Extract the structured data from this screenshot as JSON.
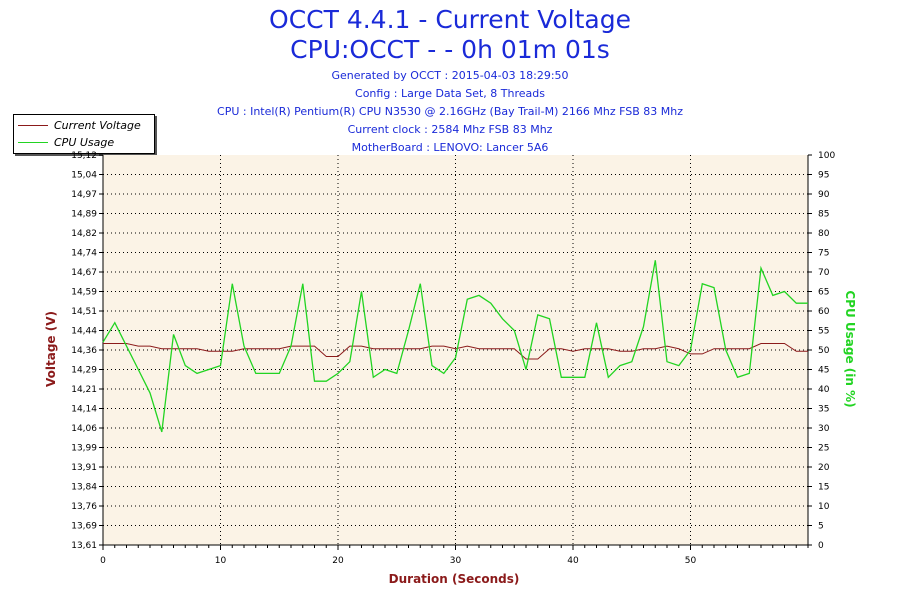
{
  "titles": {
    "line1": "OCCT 4.4.1 - Current Voltage",
    "line2": "CPU:OCCT -  - 0h 01m 01s"
  },
  "info_lines": [
    "Generated by OCCT : 2015-04-03 18:29:50",
    "Config : Large Data Set, 8 Threads",
    "CPU : Intel(R) Pentium(R) CPU N3530 @ 2.16GHz (Bay Trail-M) 2166 Mhz FSB 83 Mhz",
    "Current clock : 2584 Mhz FSB 83 Mhz",
    "MotherBoard : LENOVO: Lancer 5A6"
  ],
  "colors": {
    "title": "#1a2ad8",
    "voltage": "#8b1a1a",
    "cpu": "#22d422",
    "plot_bg": "#fbf3e6",
    "grid": "#000000"
  },
  "chart_data": {
    "type": "line",
    "xlabel": "Duration (Seconds)",
    "ylabel_left": "Voltage (V)",
    "ylabel_right": "CPU Usage (in %)",
    "xlim": [
      0,
      60
    ],
    "ylim_left": [
      13.61,
      15.12
    ],
    "ylim_right": [
      0,
      100
    ],
    "x_ticks": [
      0,
      10,
      20,
      30,
      40,
      50
    ],
    "y_left_ticks": [
      "13,61",
      "13,69",
      "13,76",
      "13,84",
      "13,91",
      "13,99",
      "14,06",
      "14,14",
      "14,21",
      "14,29",
      "14,36",
      "14,44",
      "14,51",
      "14,59",
      "14,67",
      "14,74",
      "14,82",
      "14,89",
      "14,97",
      "15,04",
      "15,12"
    ],
    "y_right_ticks": [
      0,
      5,
      10,
      15,
      20,
      25,
      30,
      35,
      40,
      45,
      50,
      55,
      60,
      65,
      70,
      75,
      80,
      85,
      90,
      95,
      100
    ],
    "grid": true,
    "legend": {
      "placement": "top-left",
      "entries": [
        "Current Voltage",
        "CPU Usage"
      ]
    },
    "series": [
      {
        "name": "Current Voltage",
        "axis": "left",
        "x": [
          0,
          1,
          2,
          3,
          4,
          5,
          6,
          7,
          8,
          9,
          10,
          11,
          12,
          13,
          14,
          15,
          16,
          17,
          18,
          19,
          20,
          21,
          22,
          23,
          24,
          25,
          26,
          27,
          28,
          29,
          30,
          31,
          32,
          33,
          34,
          35,
          36,
          37,
          38,
          39,
          40,
          41,
          42,
          43,
          44,
          45,
          46,
          47,
          48,
          49,
          50,
          51,
          52,
          53,
          54,
          55,
          56,
          57,
          58,
          59,
          60
        ],
        "y": [
          14.39,
          14.39,
          14.39,
          14.38,
          14.38,
          14.37,
          14.37,
          14.37,
          14.37,
          14.36,
          14.36,
          14.36,
          14.37,
          14.37,
          14.37,
          14.37,
          14.38,
          14.38,
          14.38,
          14.34,
          14.34,
          14.38,
          14.38,
          14.37,
          14.37,
          14.37,
          14.37,
          14.37,
          14.38,
          14.38,
          14.37,
          14.38,
          14.37,
          14.37,
          14.37,
          14.37,
          14.33,
          14.33,
          14.37,
          14.37,
          14.36,
          14.37,
          14.37,
          14.37,
          14.36,
          14.36,
          14.37,
          14.37,
          14.38,
          14.37,
          14.35,
          14.35,
          14.37,
          14.37,
          14.37,
          14.37,
          14.39,
          14.39,
          14.39,
          14.36,
          14.36
        ]
      },
      {
        "name": "CPU Usage",
        "axis": "right",
        "x": [
          0,
          1,
          2,
          3,
          4,
          5,
          6,
          7,
          8,
          9,
          10,
          11,
          12,
          13,
          14,
          15,
          16,
          17,
          18,
          19,
          20,
          21,
          22,
          23,
          24,
          25,
          26,
          27,
          28,
          29,
          30,
          31,
          32,
          33,
          34,
          35,
          36,
          37,
          38,
          39,
          40,
          41,
          42,
          43,
          44,
          45,
          46,
          47,
          48,
          49,
          50,
          51,
          52,
          53,
          54,
          55,
          56,
          57,
          58,
          59,
          60
        ],
        "y": [
          52,
          57,
          51,
          45,
          39,
          29,
          54,
          46,
          44,
          45,
          46,
          67,
          51,
          44,
          44,
          44,
          51,
          67,
          42,
          42,
          44,
          47,
          65,
          43,
          45,
          44,
          55,
          67,
          46,
          44,
          48,
          63,
          64,
          62,
          58,
          55,
          45,
          59,
          58,
          43,
          43,
          43,
          57,
          43,
          46,
          47,
          56,
          73,
          47,
          46,
          50,
          67,
          66,
          50,
          43,
          44,
          71,
          64,
          65,
          62,
          62
        ]
      }
    ]
  }
}
